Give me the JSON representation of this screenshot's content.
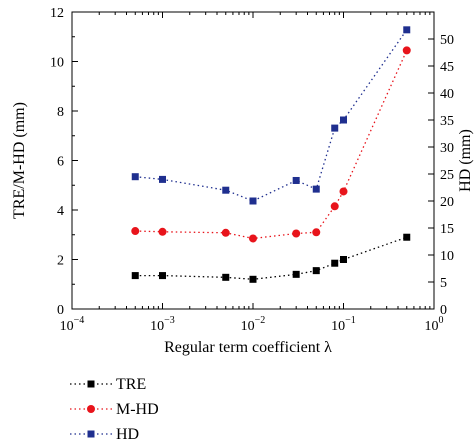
{
  "chart_data": {
    "type": "line",
    "x_scale": "log",
    "xlim": [
      0.0001,
      1
    ],
    "ylim_left": [
      0,
      12
    ],
    "ylim_right": [
      0,
      55
    ],
    "xlabel": "Regular term coefficient λ",
    "ylabel_left": "TRE/M-HD (mm)",
    "ylabel_right": "HD (mm)",
    "x_ticks": [
      {
        "value": 0.0001,
        "base": "10",
        "exp": "−4"
      },
      {
        "value": 0.001,
        "base": "10",
        "exp": "−3"
      },
      {
        "value": 0.01,
        "base": "10",
        "exp": "−2"
      },
      {
        "value": 0.1,
        "base": "10",
        "exp": "−1"
      },
      {
        "value": 1,
        "base": "10",
        "exp": "0"
      }
    ],
    "y_ticks_left": [
      "0",
      "2",
      "4",
      "6",
      "8",
      "10",
      "12"
    ],
    "y_ticks_right": [
      "0",
      "5",
      "10",
      "15",
      "20",
      "25",
      "30",
      "35",
      "40",
      "45",
      "50"
    ],
    "x": [
      0.0005,
      0.001,
      0.005,
      0.01,
      0.03,
      0.05,
      0.08,
      0.1,
      0.5
    ],
    "series": [
      {
        "name": "TRE",
        "axis": "left",
        "color": "#000000",
        "marker": "square",
        "values": [
          1.35,
          1.35,
          1.28,
          1.2,
          1.4,
          1.55,
          1.85,
          2.0,
          2.9
        ]
      },
      {
        "name": "M-HD",
        "axis": "left",
        "color": "#e8141b",
        "marker": "circle",
        "values": [
          3.15,
          3.12,
          3.08,
          2.85,
          3.05,
          3.1,
          4.15,
          4.75,
          10.45
        ]
      },
      {
        "name": "HD",
        "axis": "right",
        "color": "#1f2f8f",
        "marker": "square",
        "values": [
          24.5,
          24.0,
          22.0,
          20.0,
          23.8,
          22.2,
          33.5,
          35.0,
          51.7
        ]
      }
    ],
    "grid": false,
    "legend_position": "bottom-left"
  }
}
